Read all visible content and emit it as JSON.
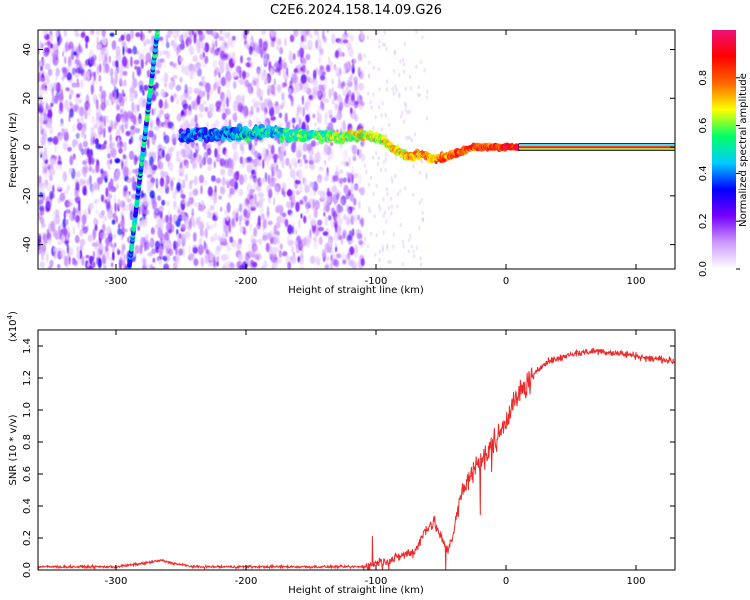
{
  "figure_title": "C2E6.2024.158.14.09.G26",
  "colors": {
    "trace": "#ee2a2a",
    "axis": "#000000"
  },
  "chart_data": [
    {
      "type": "heatmap",
      "title": "C2E6.2024.158.14.09.G26",
      "xlabel": "Height of straight line (km)",
      "ylabel": "Frequency (Hz)",
      "xlim": [
        -360,
        130
      ],
      "ylim": [
        -50,
        48
      ],
      "xticks": [
        -300,
        -200,
        -100,
        0,
        100
      ],
      "xtick_labels": [
        "-300",
        "-200",
        "-100",
        "0",
        "100"
      ],
      "yticks": [
        -40,
        -20,
        0,
        20,
        40
      ],
      "ytick_labels": [
        "-40",
        "-20",
        "0",
        "20",
        "40"
      ],
      "features": {
        "noise_region_x": [
          -360,
          -110
        ],
        "streak": {
          "from": [
            -290,
            -50
          ],
          "to": [
            -268,
            48
          ]
        },
        "center_line_points": [
          [
            -250,
            5
          ],
          [
            -220,
            5
          ],
          [
            -190,
            6
          ],
          [
            -160,
            5
          ],
          [
            -130,
            4
          ],
          [
            -110,
            5
          ],
          [
            -95,
            3
          ],
          [
            -85,
            -1
          ],
          [
            -75,
            -4
          ],
          [
            -65,
            -3
          ],
          [
            -55,
            -5
          ],
          [
            -45,
            -4
          ],
          [
            -35,
            -2
          ],
          [
            -25,
            0
          ],
          [
            -15,
            0
          ],
          [
            -5,
            0
          ],
          [
            10,
            0
          ],
          [
            60,
            0
          ],
          [
            130,
            0
          ]
        ],
        "flat_line_x": [
          10,
          130
        ],
        "flat_line_y": 0
      },
      "colorbar": {
        "label": "Normalized spectral amplitude",
        "range": [
          0,
          1
        ],
        "ticks": [
          "0.0",
          "0.2",
          "0.4",
          "0.6",
          "0.8"
        ],
        "tick_values": [
          0.0,
          0.2,
          0.4,
          0.6,
          0.8
        ],
        "scale": [
          "#ffffff",
          "#cc99ff",
          "#7700ff",
          "#0000ff",
          "#00ccff",
          "#00ff66",
          "#ffff00",
          "#ff6600",
          "#ff0000",
          "#ee1177"
        ]
      }
    },
    {
      "type": "line",
      "xlabel": "Height of straight line (km)",
      "ylabel": "SNR (10 * v/v)",
      "y_multiplier": "(x10",
      "y_multiplier_exp": "4",
      "y_multiplier_close": ")",
      "xlim": [
        -360,
        130
      ],
      "ylim": [
        0,
        1.5
      ],
      "xticks": [
        -300,
        -200,
        -100,
        0,
        100
      ],
      "xtick_labels": [
        "-300",
        "-200",
        "-100",
        "0",
        "100"
      ],
      "yticks": [
        0.0,
        0.2,
        0.4,
        0.6,
        0.8,
        1.0,
        1.2,
        1.4
      ],
      "ytick_labels": [
        "0.0",
        "0.2",
        "0.4",
        "0.6",
        "0.8",
        "1.0",
        "1.2",
        "1.4"
      ],
      "series": [
        {
          "x": [
            -360,
            -300,
            -280,
            -265,
            -255,
            -240,
            -200,
            -150,
            -110,
            -100,
            -90,
            -80,
            -70,
            -60,
            -55,
            -50,
            -45,
            -40,
            -35,
            -30,
            -25,
            -20,
            -15,
            -10,
            -5,
            0,
            10,
            20,
            30,
            40,
            50,
            60,
            70,
            80,
            90,
            100,
            110,
            120,
            130
          ],
          "values": [
            0.02,
            0.02,
            0.04,
            0.06,
            0.04,
            0.02,
            0.02,
            0.02,
            0.02,
            0.04,
            0.06,
            0.09,
            0.12,
            0.28,
            0.3,
            0.2,
            0.12,
            0.25,
            0.45,
            0.55,
            0.62,
            0.7,
            0.7,
            0.8,
            0.85,
            0.95,
            1.1,
            1.2,
            1.3,
            1.32,
            1.35,
            1.36,
            1.37,
            1.36,
            1.35,
            1.34,
            1.32,
            1.32,
            1.3
          ]
        }
      ]
    }
  ]
}
